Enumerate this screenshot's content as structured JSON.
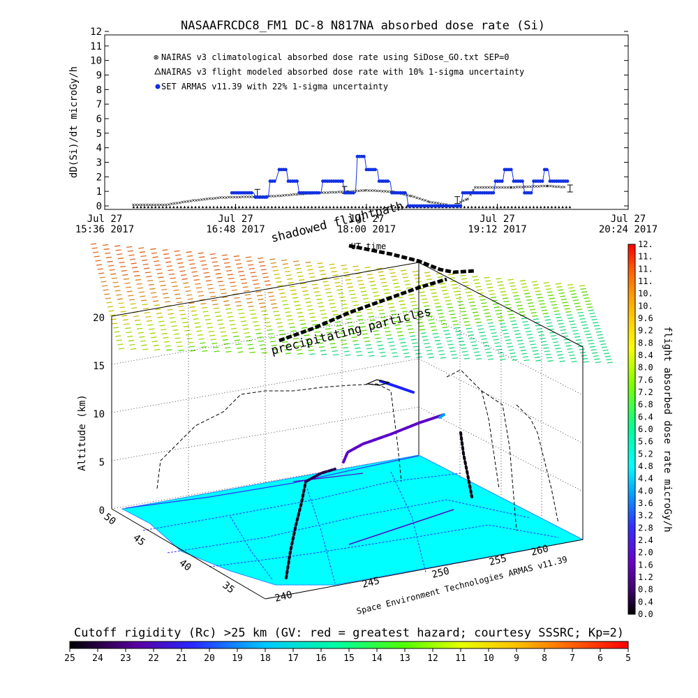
{
  "title": "NASAAFRCDC8_FM1 DC-8   N817NA absorbed dose rate (Si)",
  "time_plot": {
    "ylabel": "dD(Si)/dt microGy/h",
    "xlabel": "UT time",
    "legend": [
      {
        "label": "NAIRAS v3 climatological absorbed dose rate using SiDose_GO.txt SEP=0",
        "color": "#c8503c",
        "marker": "x"
      },
      {
        "label": "NAIRAS v3 flight modeled absorbed dose rate with 10% 1-sigma uncertainty",
        "color": "#000000",
        "marker": "triangle"
      },
      {
        "label": "SET ARMAS v11.39 with 22% 1-sigma uncertainty",
        "color": "#1030e0",
        "marker": "dot"
      }
    ],
    "x_ticks": [
      {
        "l1": "Jul 27",
        "l2": "15:36 2017"
      },
      {
        "l1": "Jul 27",
        "l2": "16:48 2017"
      },
      {
        "l1": "Jul 27",
        "l2": "18:00 2017"
      },
      {
        "l1": "Jul 27",
        "l2": "19:12 2017"
      },
      {
        "l1": "Jul 27",
        "l2": "20:24 2017"
      }
    ]
  },
  "chart_data": [
    {
      "type": "line",
      "title": "NASAAFRCDC8_FM1 DC-8   N817NA absorbed dose rate (Si)",
      "xlabel": "UT time",
      "ylabel": "dD(Si)/dt microGy/h",
      "x_ticks": [
        "Jul 27 15:36 2017",
        "Jul 27 16:48 2017",
        "Jul 27 18:00 2017",
        "Jul 27 19:12 2017",
        "Jul 27 20:24 2017"
      ],
      "ylim": [
        0,
        12
      ],
      "yticks": [
        0,
        1,
        2,
        3,
        4,
        5,
        6,
        7,
        8,
        9,
        10,
        11,
        12
      ],
      "legend_position": "top-left",
      "series": [
        {
          "name": "NAIRAS v3 climatological absorbed dose rate using SiDose_GO.txt SEP=0",
          "color": "#c8503c",
          "points": [
            [
              "15:52",
              0.1
            ],
            [
              "16:10",
              0.1
            ],
            [
              "16:25",
              0.4
            ],
            [
              "16:40",
              0.6
            ],
            [
              "17:10",
              0.7
            ],
            [
              "17:30",
              0.9
            ],
            [
              "17:50",
              1.0
            ],
            [
              "18:00",
              1.1
            ],
            [
              "18:15",
              1.0
            ],
            [
              "18:25",
              0.7
            ],
            [
              "18:35",
              0.3
            ],
            [
              "18:45",
              0.1
            ],
            [
              "18:52",
              0.3
            ],
            [
              "18:56",
              0.5
            ],
            [
              "19:00",
              1.3
            ],
            [
              "19:20",
              1.3
            ],
            [
              "19:40",
              1.4
            ],
            [
              "19:50",
              1.3
            ]
          ]
        },
        {
          "name": "NAIRAS v3 flight modeled absorbed dose rate with 10% 1-sigma uncertainty",
          "color": "#000000",
          "points": [
            [
              "15:52",
              0.0
            ],
            [
              "19:52",
              0.0
            ]
          ],
          "error_bars": [
            [
              "17:00",
              0.9
            ],
            [
              "17:48",
              1.1
            ],
            [
              "18:50",
              0.4
            ],
            [
              "19:52",
              1.2
            ]
          ]
        },
        {
          "name": "SET ARMAS v11.39 with 22% 1-sigma uncertainty",
          "color": "#1030e0",
          "points": [
            [
              "16:46",
              0.9
            ],
            [
              "16:58",
              0.9
            ],
            [
              "16:59",
              0.6
            ],
            [
              "17:06",
              0.6
            ],
            [
              "17:07",
              1.7
            ],
            [
              "17:10",
              1.7
            ],
            [
              "17:12",
              2.5
            ],
            [
              "17:16",
              2.5
            ],
            [
              "17:17",
              1.7
            ],
            [
              "17:22",
              1.7
            ],
            [
              "17:23",
              0.9
            ],
            [
              "17:35",
              0.9
            ],
            [
              "17:36",
              1.7
            ],
            [
              "17:47",
              1.7
            ],
            [
              "17:48",
              0.9
            ],
            [
              "17:54",
              0.9
            ],
            [
              "17:55",
              3.4
            ],
            [
              "17:59",
              3.4
            ],
            [
              "18:00",
              2.5
            ],
            [
              "18:06",
              2.5
            ],
            [
              "18:07",
              1.7
            ],
            [
              "18:13",
              1.7
            ],
            [
              "18:14",
              0.9
            ],
            [
              "18:22",
              0.9
            ],
            [
              "18:23",
              0.0
            ],
            [
              "18:52",
              0.0
            ],
            [
              "18:53",
              0.9
            ],
            [
              "19:10",
              0.9
            ],
            [
              "19:11",
              1.7
            ],
            [
              "19:15",
              1.7
            ],
            [
              "19:16",
              2.5
            ],
            [
              "19:20",
              2.5
            ],
            [
              "19:21",
              1.7
            ],
            [
              "19:26",
              1.7
            ],
            [
              "19:27",
              0.9
            ],
            [
              "19:31",
              0.9
            ],
            [
              "19:32",
              1.7
            ],
            [
              "19:37",
              1.7
            ],
            [
              "19:38",
              2.5
            ],
            [
              "19:40",
              2.5
            ],
            [
              "19:41",
              1.7
            ],
            [
              "19:51",
              1.7
            ]
          ]
        }
      ]
    },
    {
      "type": "scatter",
      "subtype": "3d-flight-track",
      "zlabel": "Altitude (km)",
      "zlim": [
        0,
        20
      ],
      "zticks": [
        0,
        5,
        10,
        15,
        20
      ],
      "latitude_ticks": [
        35,
        40,
        45,
        50
      ],
      "longitude_ticks": [
        240,
        245,
        250,
        255,
        260
      ],
      "annotations": [
        "shadowed flightpath",
        "precipitating particles"
      ],
      "credit": "Space Environment Technologies ARMAS v11.39",
      "colorbar": {
        "label": "flight absorbed dose rate microGy/h",
        "ticks": [
          "0.0",
          "0.4",
          "0.8",
          "1.2",
          "1.6",
          "2.0",
          "2.4",
          "2.8",
          "3.2",
          "3.6",
          "4.0",
          "4.4",
          "4.8",
          "5.2",
          "5.6",
          "6.0",
          "6.4",
          "6.8",
          "7.2",
          "7.6",
          "8.0",
          "8.4",
          "8.8",
          "9.2",
          "9.6",
          "10.",
          "10.",
          "11.",
          "11.",
          "11.",
          "12."
        ],
        "colors": [
          "#000000",
          "#3c0064",
          "#7800c8",
          "#3c3cff",
          "#00a0ff",
          "#00ffff",
          "#00ff96",
          "#96ff00",
          "#ffff00",
          "#ffc800",
          "#ff7800",
          "#ff0000"
        ]
      },
      "cutoff_rigidity_bar": {
        "label": "Cutoff rigidity (Rc) >25 km (GV: red = greatest hazard; courtesy SSSRC; Kp=2)",
        "ticks": [
          "25",
          "24",
          "23",
          "22",
          "21",
          "20",
          "19",
          "18",
          "17",
          "16",
          "15",
          "14",
          "13",
          "12",
          "11",
          "10",
          "9",
          "8",
          "7",
          "6",
          "5"
        ]
      }
    }
  ],
  "colors": {
    "plot_line": "#000000",
    "ground": "#00ffff",
    "background": "#ffffff"
  }
}
